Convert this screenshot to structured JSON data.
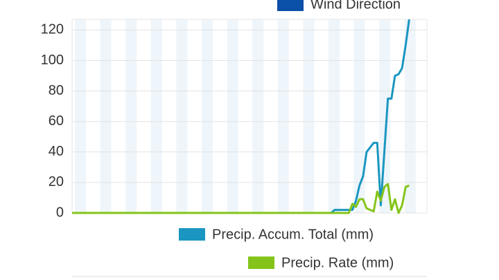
{
  "chart_data": {
    "type": "line",
    "x": [
      0,
      73,
      74,
      78,
      79,
      80,
      81,
      82,
      83,
      84,
      85,
      86,
      87,
      88,
      89,
      90,
      91,
      92,
      93,
      94,
      95
    ],
    "xlim": [
      0,
      100
    ],
    "series": [
      {
        "name": "Precip. Accum. Total (mm)",
        "color": "#1a96c0",
        "values": [
          0,
          0,
          2,
          2,
          2,
          8,
          18,
          24,
          40,
          43,
          46,
          46,
          5,
          40,
          75,
          75,
          90,
          91,
          95,
          110,
          127
        ]
      },
      {
        "name": "Precip. Rate (mm)",
        "color": "#84c41a",
        "values": [
          0,
          0,
          0,
          0,
          6,
          4,
          9,
          9,
          3,
          2,
          1,
          14,
          8,
          17,
          19,
          2,
          9,
          0,
          5,
          17,
          18
        ]
      }
    ],
    "other_legend": [
      {
        "name": "Wind Direction",
        "color": "#0a4fa8"
      }
    ],
    "ylim": [
      0,
      127
    ],
    "yticks": [
      0,
      20,
      40,
      60,
      80,
      100,
      120
    ],
    "grid": true
  }
}
